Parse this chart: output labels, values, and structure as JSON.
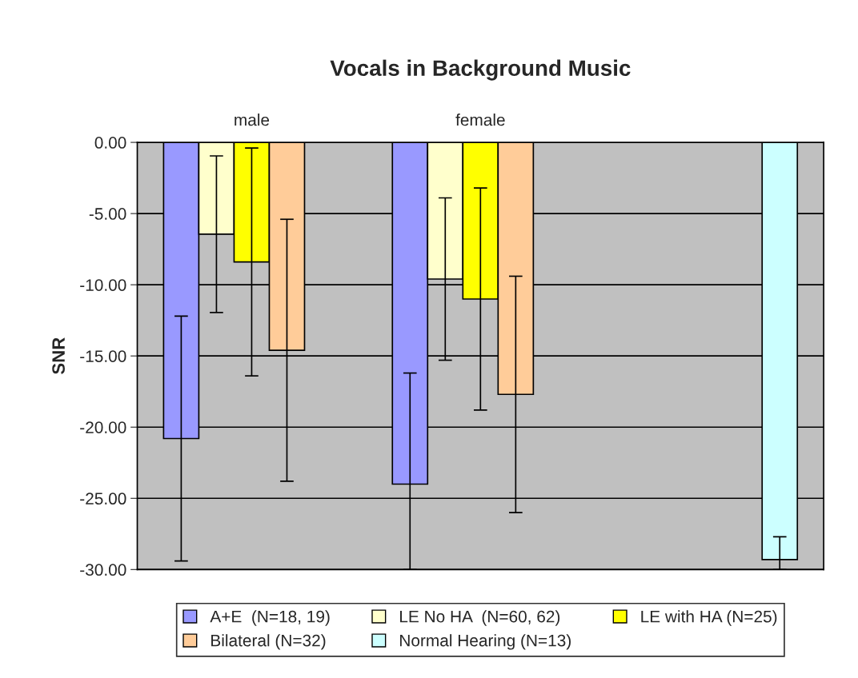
{
  "chart_data": {
    "type": "bar",
    "title": "Vocals in Background Music",
    "ylabel": "SNR",
    "categories": [
      "male",
      "female",
      null
    ],
    "series": [
      {
        "name": "A+E  (N=18, 19)",
        "color": "#9999ff",
        "values": [
          -20.8,
          -24.0,
          null
        ],
        "errors": [
          8.6,
          [
            -30,
            -16.2
          ],
          null
        ]
      },
      {
        "name": "LE No HA  (N=60, 62)",
        "color": "#ffffcc",
        "values": [
          -6.45,
          -9.6,
          null
        ],
        "errors": [
          5.5,
          5.7,
          null
        ]
      },
      {
        "name": "LE with HA (N=25)",
        "color": "#ffff00",
        "values": [
          -8.4,
          -11.0,
          null
        ],
        "errors": [
          8.0,
          7.8,
          null
        ]
      },
      {
        "name": "Bilateral (N=32)",
        "color": "#ffcc99",
        "values": [
          -14.6,
          -17.7,
          null
        ],
        "errors": [
          9.2,
          8.3,
          null
        ]
      },
      {
        "name": "Normal Hearing (N=13)",
        "color": "#ccffff",
        "values": [
          null,
          null,
          -29.3
        ],
        "errors": [
          null,
          null,
          [
            -30,
            -27.7
          ]
        ]
      }
    ],
    "ylim": [
      -30,
      0
    ],
    "yticks": [
      {
        "value": 0,
        "label": "0.00"
      },
      {
        "value": -5,
        "label": "-5.00"
      },
      {
        "value": -10,
        "label": "-10.00"
      },
      {
        "value": -15,
        "label": "-15.00"
      },
      {
        "value": -20,
        "label": "-20.00"
      },
      {
        "value": -25,
        "label": "-25.00"
      },
      {
        "value": -30,
        "label": "-30.00"
      }
    ],
    "grid": "y",
    "legend": "bottom"
  }
}
